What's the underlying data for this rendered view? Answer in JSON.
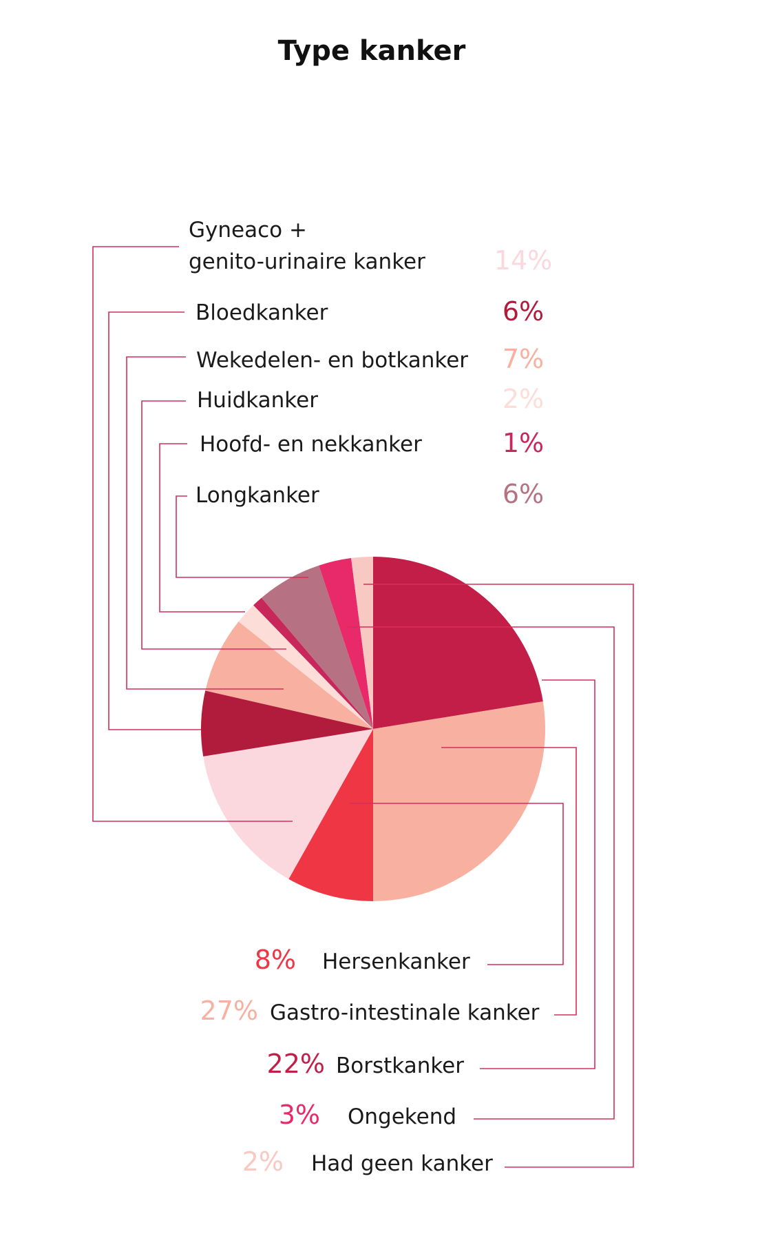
{
  "chart_data": {
    "type": "pie",
    "title": "Type kanker",
    "slices": [
      {
        "label": "Had geen kanker",
        "pct_text": "2%",
        "value": 2,
        "color": "#F8C9C3"
      },
      {
        "label": "Ongekend",
        "pct_text": "3%",
        "value": 3,
        "color": "#E8296A"
      },
      {
        "label": "Borstkanker",
        "pct_text": "22%",
        "value": 22,
        "color": "#C31E47"
      },
      {
        "label": "Gastro-intestinale kanker",
        "pct_text": "27%",
        "value": 27,
        "color": "#F8B0A1"
      },
      {
        "label": "Hersenkanker",
        "pct_text": "8%",
        "value": 8,
        "color": "#EF3645"
      },
      {
        "label_line1": "Gyneaco +",
        "label_line2": "genito-urinaire kanker",
        "pct_text": "14%",
        "value": 14,
        "color": "#FAD8DE"
      },
      {
        "label": "Bloedkanker",
        "pct_text": "6%",
        "value": 6,
        "color": "#B21C3C"
      },
      {
        "label": "Wekedelen- en botkanker",
        "pct_text": "7%",
        "value": 7,
        "color": "#F8B0A1"
      },
      {
        "label": "Huidkanker",
        "pct_text": "2%",
        "value": 2,
        "color": "#FCDDD8"
      },
      {
        "label": "Hoofd- en nekkanker",
        "pct_text": "1%",
        "value": 1,
        "color": "#C8275B"
      },
      {
        "label": "Longkanker",
        "pct_text": "6%",
        "value": 6,
        "color": "#B67283"
      }
    ]
  }
}
